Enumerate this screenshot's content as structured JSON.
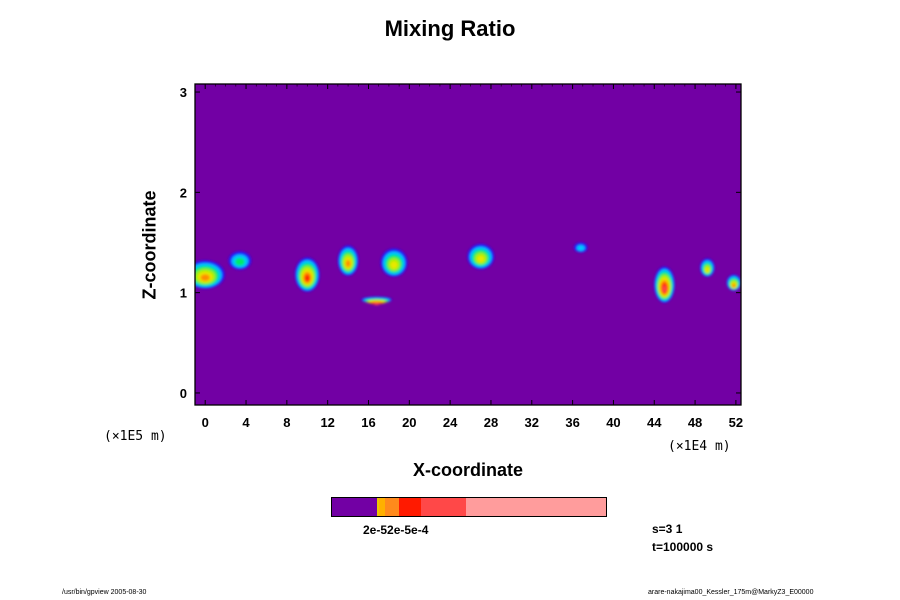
{
  "title": "Mixing Ratio",
  "chart_data": {
    "type": "heatmap",
    "title": "Mixing Ratio",
    "xlabel": "X-coordinate",
    "ylabel": "Z-coordinate",
    "x_scale_note": "(×1E4 m)",
    "y_scale_note": "(×1E5 m)",
    "xlim": [
      -1,
      52.5
    ],
    "ylim": [
      -0.12,
      3.08
    ],
    "x_ticks": [
      0,
      4,
      8,
      12,
      16,
      20,
      24,
      28,
      32,
      36,
      40,
      44,
      48,
      52
    ],
    "y_ticks": [
      0,
      1,
      2,
      3
    ],
    "background_color": "#7200a4",
    "colorscale": [
      "#7200a4",
      "#1a1aff",
      "#00c8ff",
      "#00e868",
      "#9cf000",
      "#e8e800",
      "#ff8c00",
      "#ff2000",
      "#ff4848",
      "#ff9c9c"
    ],
    "blobs": [
      {
        "x": 0.0,
        "z": 1.18,
        "w": 3.8,
        "h": 0.28,
        "level": 6
      },
      {
        "x": 3.4,
        "z": 1.32,
        "w": 2.2,
        "h": 0.18,
        "level": 3
      },
      {
        "x": 10.0,
        "z": 1.18,
        "w": 2.4,
        "h": 0.34,
        "level": 7
      },
      {
        "x": 14.0,
        "z": 1.32,
        "w": 2.0,
        "h": 0.3,
        "level": 6
      },
      {
        "x": 18.5,
        "z": 1.3,
        "w": 2.6,
        "h": 0.28,
        "level": 5
      },
      {
        "x": 16.8,
        "z": 0.93,
        "w": 3.0,
        "h": 0.06,
        "level": 8
      },
      {
        "x": 27.0,
        "z": 1.36,
        "w": 2.6,
        "h": 0.25,
        "level": 5
      },
      {
        "x": 36.8,
        "z": 1.45,
        "w": 1.3,
        "h": 0.1,
        "level": 2
      },
      {
        "x": 45.0,
        "z": 1.08,
        "w": 2.0,
        "h": 0.36,
        "level": 8
      },
      {
        "x": 49.2,
        "z": 1.25,
        "w": 1.4,
        "h": 0.18,
        "level": 5
      },
      {
        "x": 51.8,
        "z": 1.1,
        "w": 1.4,
        "h": 0.16,
        "level": 6
      }
    ],
    "colorbar": {
      "label": "2e-52e-5e-4",
      "segments": [
        {
          "color": "#7200a4",
          "frac": 0.165
        },
        {
          "color": "#e8c800",
          "frac": 0.008
        },
        {
          "color": "#ffb000",
          "frac": 0.02
        },
        {
          "color": "#ff8a1c",
          "frac": 0.052
        },
        {
          "color": "#ff1a00",
          "frac": 0.08
        },
        {
          "color": "#ff4848",
          "frac": 0.165
        },
        {
          "color": "#ff9c9c",
          "frac": 0.51
        }
      ]
    }
  },
  "info": {
    "s": "s=3 1",
    "t": "t=100000 s"
  },
  "footer": {
    "left": "/usr/bin/gpview 2005-08-30",
    "right": "arare-nakajima00_Kessler_175m@MarkyZ3_E00000"
  }
}
